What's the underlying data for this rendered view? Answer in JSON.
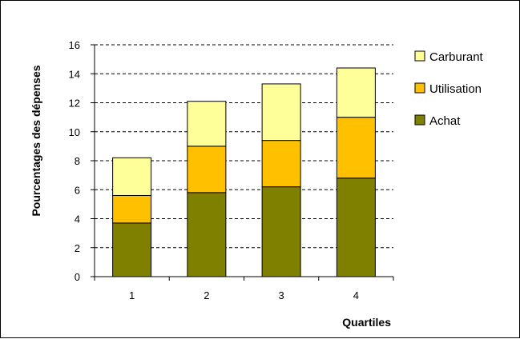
{
  "chart_data": {
    "type": "bar",
    "stacked": true,
    "categories": [
      "1",
      "2",
      "3",
      "4"
    ],
    "series": [
      {
        "name": "Achat",
        "values": [
          3.7,
          5.8,
          6.2,
          6.8
        ],
        "color": "#808000"
      },
      {
        "name": "Utilisation",
        "values": [
          1.9,
          3.2,
          3.2,
          4.2
        ],
        "color": "#ffc000"
      },
      {
        "name": "Carburant",
        "values": [
          2.6,
          3.1,
          3.9,
          3.4
        ],
        "color": "#ffff99"
      }
    ],
    "title": "",
    "xlabel": "Quartiles",
    "ylabel": "Pourcentages des dépenses",
    "ylim": [
      0,
      16
    ],
    "yticks": [
      0,
      2,
      4,
      6,
      8,
      10,
      12,
      14,
      16
    ],
    "grid": true,
    "grid_style": "dashed",
    "legend_position": "right",
    "legend_order": [
      "Carburant",
      "Utilisation",
      "Achat"
    ]
  }
}
